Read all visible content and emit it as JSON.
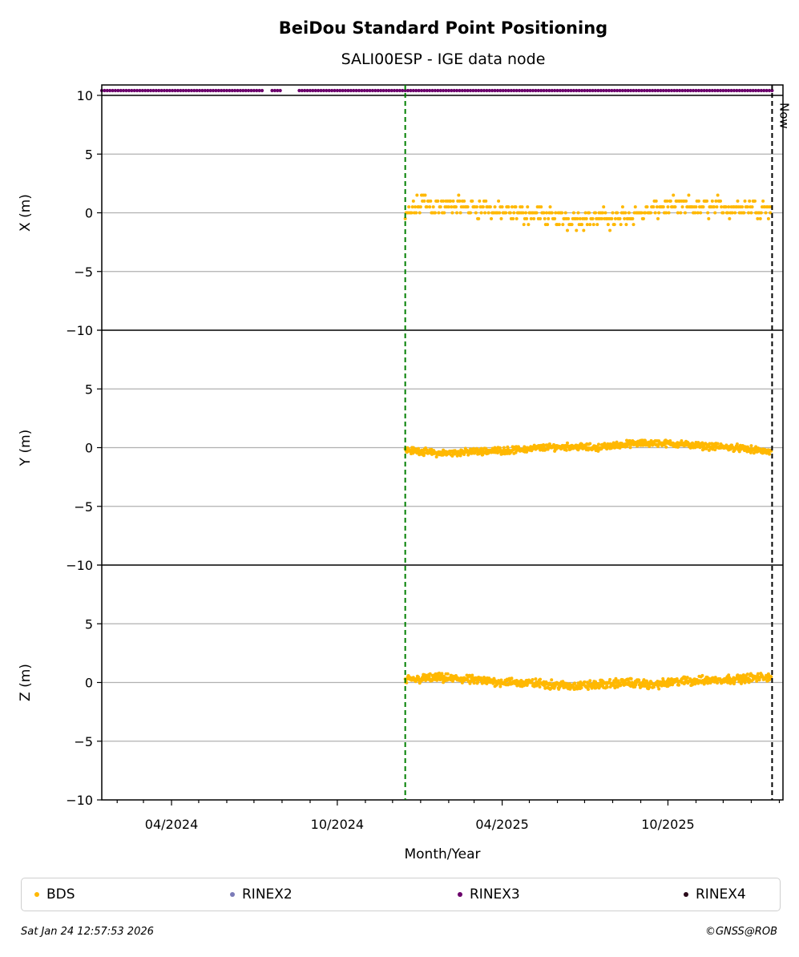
{
  "chart_data": {
    "type": "scatter",
    "title": "BeiDou Standard Point Positioning",
    "subtitle": "SALI00ESP - IGE data node",
    "xlabel": "Month/Year",
    "x_ticks": [
      "04/2024",
      "10/2024",
      "04/2025",
      "10/2025"
    ],
    "x_range": [
      "2024-01-15",
      "2026-02-05"
    ],
    "now_date": "2026-01-24",
    "start_marker_date": "2024-12-15",
    "now_label": "Now",
    "rinex_segments": [
      {
        "start": "2024-01-15",
        "end": "2024-07-10"
      },
      {
        "start": "2024-07-21",
        "end": "2024-07-30"
      },
      {
        "start": "2024-08-20",
        "end": "2026-01-24"
      }
    ],
    "panels": [
      {
        "ylabel": "X (m)",
        "ylim": [
          -10,
          10
        ],
        "yticks": [
          "−10",
          "−5",
          "0",
          "5",
          "10"
        ],
        "anchors": [
          [
            "2024-12-15",
            -0.5
          ],
          [
            "2024-12-25",
            0.5
          ],
          [
            "2025-01-05",
            1.0
          ],
          [
            "2025-01-20",
            0.5
          ],
          [
            "2025-02-10",
            0.5
          ],
          [
            "2025-03-10",
            0.5
          ],
          [
            "2025-04-05",
            0.0
          ],
          [
            "2025-05-01",
            0.0
          ],
          [
            "2025-06-01",
            -0.5
          ],
          [
            "2025-07-01",
            -0.5
          ],
          [
            "2025-08-01",
            -0.5
          ],
          [
            "2025-09-01",
            0.0
          ],
          [
            "2025-10-01",
            0.5
          ],
          [
            "2025-11-01",
            0.5
          ],
          [
            "2025-12-01",
            0.5
          ],
          [
            "2026-01-24",
            0.5
          ]
        ],
        "scatter_m": 1.0,
        "step_m": 0.5,
        "points_per_day": 1
      },
      {
        "ylabel": "Y (m)",
        "ylim": [
          -10,
          10
        ],
        "yticks": [
          "−10",
          "−5",
          "0",
          "5",
          ""
        ],
        "anchors": [
          [
            "2024-12-15",
            -0.2
          ],
          [
            "2025-01-01",
            -0.3
          ],
          [
            "2025-01-20",
            -0.5
          ],
          [
            "2025-02-15",
            -0.4
          ],
          [
            "2025-03-15",
            -0.3
          ],
          [
            "2025-04-15",
            -0.2
          ],
          [
            "2025-05-15",
            0.0
          ],
          [
            "2025-06-15",
            0.1
          ],
          [
            "2025-07-15",
            0.0
          ],
          [
            "2025-08-15",
            0.3
          ],
          [
            "2025-09-15",
            0.4
          ],
          [
            "2025-10-15",
            0.3
          ],
          [
            "2025-11-15",
            0.1
          ],
          [
            "2025-12-15",
            0.0
          ],
          [
            "2026-01-24",
            -0.4
          ]
        ],
        "scatter_m": 0.35,
        "step_m": 0,
        "points_per_day": 2
      },
      {
        "ylabel": "Z (m)",
        "ylim": [
          -10,
          10
        ],
        "yticks": [
          "−10",
          "−5",
          "0",
          "5",
          ""
        ],
        "anchors": [
          [
            "2024-12-15",
            0.2
          ],
          [
            "2025-01-15",
            0.4
          ],
          [
            "2025-02-15",
            0.3
          ],
          [
            "2025-03-15",
            0.1
          ],
          [
            "2025-04-15",
            0.0
          ],
          [
            "2025-05-15",
            -0.1
          ],
          [
            "2025-06-15",
            -0.3
          ],
          [
            "2025-07-15",
            -0.2
          ],
          [
            "2025-08-15",
            0.0
          ],
          [
            "2025-09-15",
            -0.2
          ],
          [
            "2025-10-15",
            0.1
          ],
          [
            "2025-11-15",
            0.2
          ],
          [
            "2025-12-15",
            0.3
          ],
          [
            "2026-01-24",
            0.5
          ]
        ],
        "scatter_m": 0.45,
        "step_m": 0,
        "points_per_day": 2
      }
    ],
    "legend": [
      {
        "label": "BDS",
        "color": "#ffb800"
      },
      {
        "label": "RINEX2",
        "color": "#7b7bb8"
      },
      {
        "label": "RINEX3",
        "color": "#6b006b"
      },
      {
        "label": "RINEX4",
        "color": "#2a0a1a"
      }
    ],
    "colors": {
      "bds": "#ffb800",
      "rinex3": "#6b006b",
      "start_marker": "#008000",
      "now_marker": "#000000",
      "grid": "#b0b0b0"
    }
  },
  "footer": {
    "timestamp": "Sat Jan 24 12:57:53 2026",
    "credit": "©GNSS@ROB"
  }
}
